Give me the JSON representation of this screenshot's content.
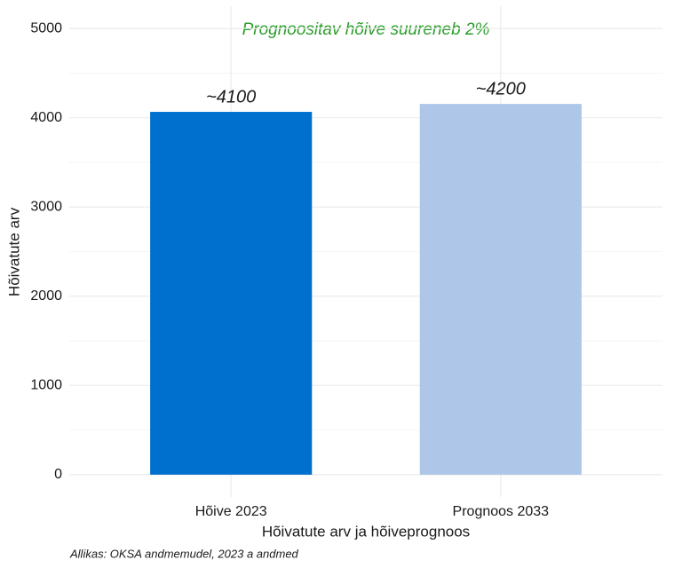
{
  "chart_data": {
    "type": "bar",
    "annotation": "Prognoositav hõive suureneb 2%",
    "categories": [
      "Hõive 2023",
      "Prognoos 2033"
    ],
    "values": [
      4066,
      4155
    ],
    "value_labels": [
      "~4100",
      "~4200"
    ],
    "colors": [
      "#0070cf",
      "#aec7e8"
    ],
    "x_label": "Hõivatute arv ja hõiveprognoos",
    "y_label": "Hõivatute arv",
    "caption": "Allikas: OKSA andmemudel, 2023 a andmed",
    "ylim": [
      -250,
      5250
    ],
    "yticks": [
      0,
      1000,
      2000,
      3000,
      4000,
      5000
    ],
    "yminor": [
      500,
      1500,
      2500,
      3500,
      4500
    ],
    "grid": true
  }
}
